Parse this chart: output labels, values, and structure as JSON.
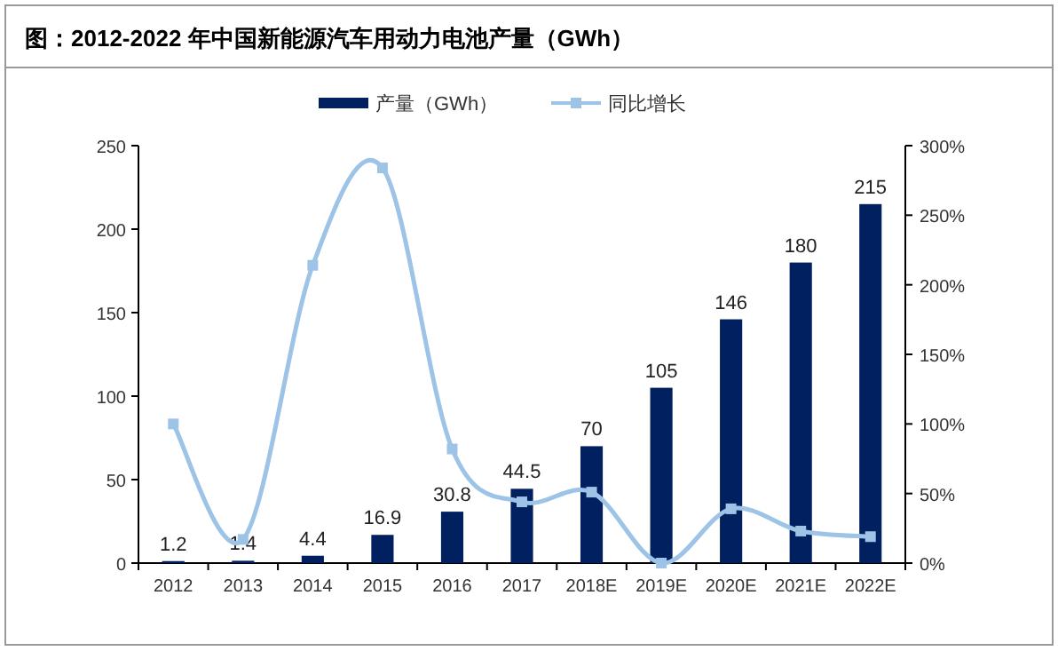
{
  "chart_data": {
    "type": "bar",
    "title": "图：2012-2022 年中国新能源汽车用动力电池产量（GWh）",
    "categories": [
      "2012",
      "2013",
      "2014",
      "2015",
      "2016",
      "2017",
      "2018E",
      "2019E",
      "2020E",
      "2021E",
      "2022E"
    ],
    "series": [
      {
        "name": "产量（GWh）",
        "color": "#002060",
        "values": [
          1.2,
          1.4,
          4.4,
          16.9,
          30.8,
          44.5,
          70,
          105,
          146,
          180,
          215
        ],
        "value_labels": [
          "1.2",
          "1.4",
          "4.4",
          "16.9",
          "30.8",
          "44.5",
          "70",
          "105",
          "146",
          "180",
          "215"
        ]
      },
      {
        "name": "同比增长",
        "type": "line",
        "axis": "y2",
        "color": "#9dc3e6",
        "values": [
          100,
          17,
          214,
          284,
          82,
          44,
          51,
          0,
          39,
          23,
          19
        ]
      }
    ],
    "ylim": [
      0,
      250
    ],
    "yticks": [
      0,
      50,
      100,
      150,
      200,
      250
    ],
    "y2lim": [
      0,
      300
    ],
    "y2ticks": [
      {
        "value": 0,
        "label": "0%"
      },
      {
        "value": 50,
        "label": "50%"
      },
      {
        "value": 100,
        "label": "100%"
      },
      {
        "value": 150,
        "label": "150%"
      },
      {
        "value": 200,
        "label": "200%"
      },
      {
        "value": 250,
        "label": "250%"
      },
      {
        "value": 300,
        "label": "300%"
      }
    ],
    "grid": false,
    "legend": "top",
    "marker": "square"
  }
}
